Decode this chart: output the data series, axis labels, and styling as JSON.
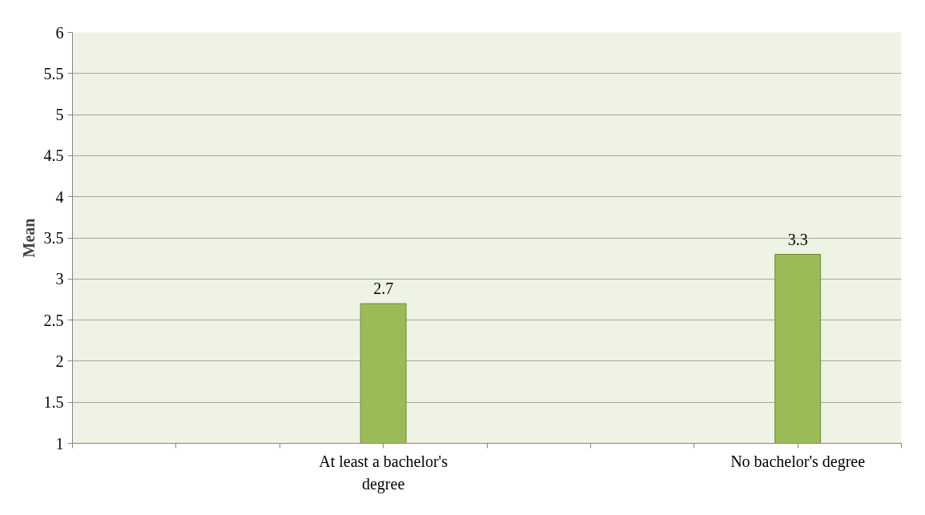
{
  "chart_data": {
    "type": "bar",
    "ylabel": "Mean",
    "categories": [
      null,
      "At least a bachelor's degree",
      null,
      "No bachelor's degree"
    ],
    "values": [
      null,
      2.7,
      null,
      3.3
    ],
    "color": "#9bbb59",
    "ylim": [
      1,
      6
    ],
    "yticks": [
      1,
      {
        "value": 1.5,
        "label": "1.5"
      },
      2,
      {
        "value": 2.5,
        "label": "2.5"
      },
      3,
      {
        "value": 3.5,
        "label": "3.5"
      },
      4,
      {
        "value": 4.5,
        "label": "4.5"
      },
      5,
      {
        "value": 5.5,
        "label": "5.5"
      },
      6
    ],
    "grid": "y",
    "data_labels": true
  }
}
